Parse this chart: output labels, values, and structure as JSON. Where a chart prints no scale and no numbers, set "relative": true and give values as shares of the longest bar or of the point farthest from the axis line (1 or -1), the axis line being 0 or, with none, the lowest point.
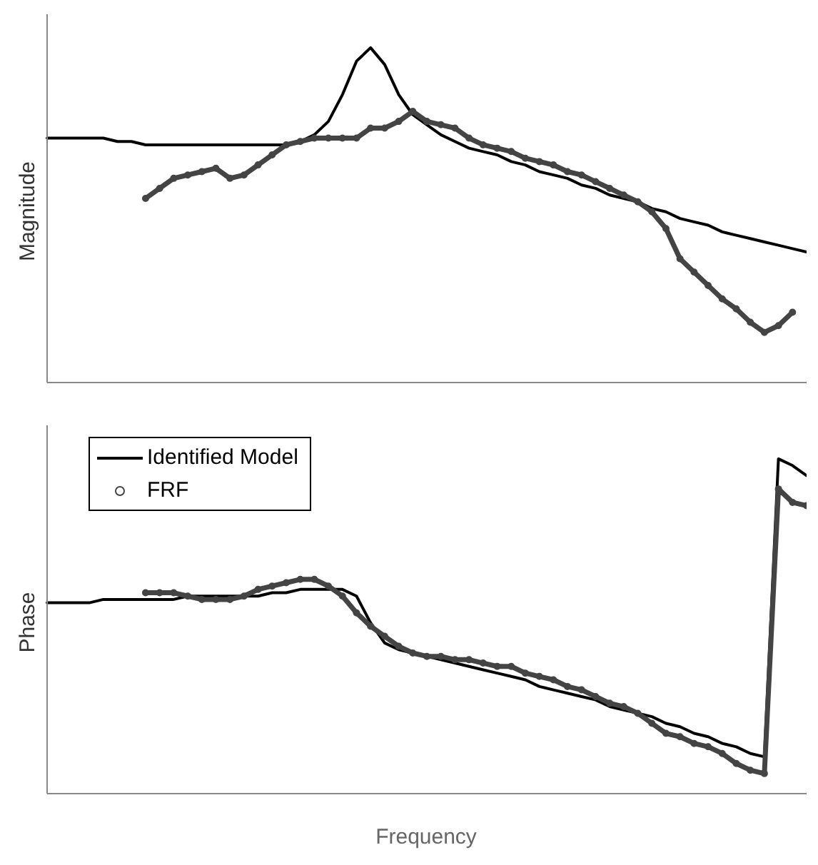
{
  "chart_data": [
    {
      "type": "line",
      "ylabel": "Magnitude",
      "relative": true,
      "legend": false,
      "grid": false,
      "categories": [
        null,
        null,
        null,
        null,
        null,
        null,
        null,
        null,
        null,
        null,
        null,
        null,
        null,
        null,
        null,
        null,
        null,
        null,
        null,
        null,
        null,
        null,
        null,
        null,
        null,
        null,
        null,
        null,
        null,
        null,
        null,
        null,
        null,
        null,
        null,
        null,
        null,
        null,
        null,
        null,
        null,
        null,
        null,
        null,
        null,
        null,
        null,
        null,
        null,
        null,
        null,
        null,
        null,
        null,
        null
      ],
      "series": [
        {
          "type": "line",
          "color": "#000000",
          "marker": "none",
          "values": [
            0.73,
            0.73,
            0.73,
            0.73,
            0.73,
            0.72,
            0.72,
            0.71,
            0.71,
            0.71,
            0.71,
            0.71,
            0.71,
            0.71,
            0.71,
            0.71,
            0.71,
            0.71,
            0.72,
            0.74,
            0.78,
            0.86,
            0.96,
            1,
            0.95,
            0.86,
            0.8,
            0.77,
            0.74,
            0.72,
            0.7,
            0.69,
            0.68,
            0.66,
            0.65,
            0.63,
            0.62,
            0.61,
            0.59,
            0.58,
            0.56,
            0.55,
            0.54,
            0.52,
            0.51,
            0.49,
            0.48,
            0.47,
            0.45,
            0.44,
            0.43,
            0.42,
            0.41,
            0.4,
            0.39
          ]
        },
        {
          "type": "line",
          "color": "#444444",
          "marker": "circle",
          "values": [
            null,
            null,
            null,
            null,
            null,
            null,
            null,
            0.55,
            0.58,
            0.61,
            0.62,
            0.63,
            0.64,
            0.61,
            0.62,
            0.65,
            0.68,
            0.71,
            0.72,
            0.73,
            0.73,
            0.73,
            0.73,
            0.76,
            0.76,
            0.78,
            0.81,
            0.78,
            0.77,
            0.76,
            0.73,
            0.71,
            0.7,
            0.69,
            0.67,
            0.66,
            0.65,
            0.63,
            0.62,
            0.6,
            0.58,
            0.56,
            0.54,
            0.51,
            0.46,
            0.37,
            0.33,
            0.29,
            0.25,
            0.22,
            0.18,
            0.15,
            0.17,
            0.21,
            null
          ]
        }
      ]
    },
    {
      "type": "line",
      "ylabel": "Phase",
      "xlabel": "Frequency",
      "relative": true,
      "legend": "top left",
      "grid": false,
      "categories": [
        null,
        null,
        null,
        null,
        null,
        null,
        null,
        null,
        null,
        null,
        null,
        null,
        null,
        null,
        null,
        null,
        null,
        null,
        null,
        null,
        null,
        null,
        null,
        null,
        null,
        null,
        null,
        null,
        null,
        null,
        null,
        null,
        null,
        null,
        null,
        null,
        null,
        null,
        null,
        null,
        null,
        null,
        null,
        null,
        null,
        null,
        null,
        null,
        null,
        null,
        null,
        null,
        null,
        null,
        null
      ],
      "series": [
        {
          "name": "Identified Model",
          "type": "line",
          "color": "#000000",
          "marker": "none",
          "values": [
            0.57,
            0.57,
            0.57,
            0.57,
            0.58,
            0.58,
            0.58,
            0.58,
            0.58,
            0.58,
            0.59,
            0.59,
            0.59,
            0.59,
            0.59,
            0.59,
            0.6,
            0.6,
            0.61,
            0.61,
            0.61,
            0.61,
            0.59,
            0.51,
            0.45,
            0.43,
            0.42,
            0.41,
            0.4,
            0.39,
            0.38,
            0.37,
            0.36,
            0.35,
            0.34,
            0.32,
            0.31,
            0.3,
            0.29,
            0.28,
            0.26,
            0.25,
            0.24,
            0.23,
            0.21,
            0.2,
            0.18,
            0.17,
            0.15,
            0.14,
            0.12,
            0.11,
            1,
            0.98,
            0.95
          ]
        },
        {
          "name": "FRF",
          "type": "line",
          "color": "#444444",
          "marker": "circle",
          "values": [
            null,
            null,
            null,
            null,
            null,
            null,
            null,
            0.6,
            0.6,
            0.6,
            0.59,
            0.58,
            0.58,
            0.58,
            0.59,
            0.61,
            0.62,
            0.63,
            0.64,
            0.64,
            0.62,
            0.59,
            0.54,
            0.5,
            0.47,
            0.44,
            0.42,
            0.41,
            0.41,
            0.4,
            0.4,
            0.39,
            0.38,
            0.38,
            0.36,
            0.35,
            0.34,
            0.32,
            0.31,
            0.29,
            0.27,
            0.26,
            0.24,
            0.21,
            0.18,
            0.17,
            0.15,
            0.14,
            0.12,
            0.09,
            0.07,
            0.06,
            0.91,
            0.87,
            0.86
          ]
        }
      ]
    }
  ]
}
